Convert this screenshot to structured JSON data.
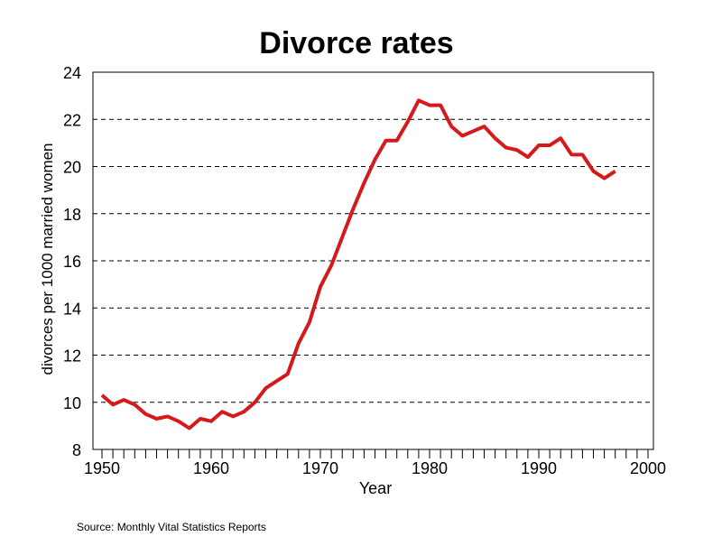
{
  "chart_data": {
    "type": "line",
    "title": "Divorce rates",
    "xlabel": "Year",
    "ylabel": "divorces per 1000 married women",
    "source": "Source: Monthly Vital Statistics Reports",
    "xlim": [
      1950,
      2000
    ],
    "ylim": [
      8,
      24
    ],
    "xticks": [
      1950,
      1960,
      1970,
      1980,
      1990,
      2000
    ],
    "yticks": [
      8,
      10,
      12,
      14,
      16,
      18,
      20,
      22,
      24
    ],
    "grid": "horizontal dashed",
    "line_color": "#d41a1a",
    "x": [
      1950,
      1951,
      1952,
      1953,
      1954,
      1955,
      1956,
      1957,
      1958,
      1959,
      1960,
      1961,
      1962,
      1963,
      1964,
      1965,
      1966,
      1967,
      1968,
      1969,
      1970,
      1971,
      1972,
      1973,
      1974,
      1975,
      1976,
      1977,
      1978,
      1979,
      1980,
      1981,
      1982,
      1983,
      1984,
      1985,
      1986,
      1987,
      1988,
      1989,
      1990,
      1991,
      1992,
      1993,
      1994,
      1995,
      1996,
      1997
    ],
    "values": [
      10.3,
      9.9,
      10.1,
      9.9,
      9.5,
      9.3,
      9.4,
      9.2,
      8.9,
      9.3,
      9.2,
      9.6,
      9.4,
      9.6,
      10.0,
      10.6,
      10.9,
      11.2,
      12.5,
      13.4,
      14.9,
      15.8,
      17.0,
      18.2,
      19.3,
      20.3,
      21.1,
      21.1,
      21.9,
      22.8,
      22.6,
      22.6,
      21.7,
      21.3,
      21.5,
      21.7,
      21.2,
      20.8,
      20.7,
      20.4,
      20.9,
      20.9,
      21.2,
      20.5,
      20.5,
      19.8,
      19.5,
      19.8
    ]
  }
}
